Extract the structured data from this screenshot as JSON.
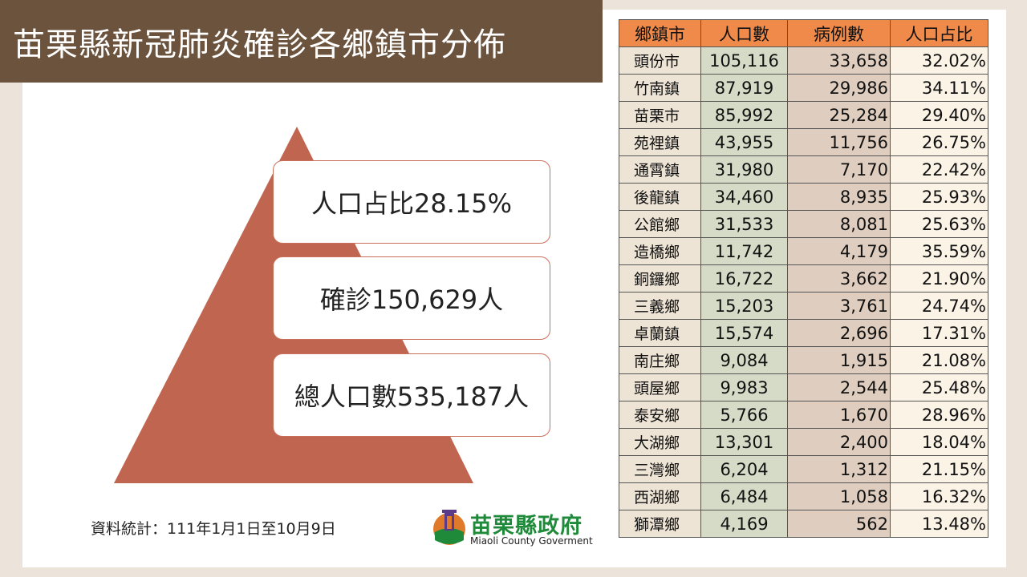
{
  "title": "苗栗縣新冠肺炎確診各鄉鎮市分佈",
  "stats": {
    "ratio": "人口占比28.15%",
    "cases": "確診150,629人",
    "population": "總人口數535,187人"
  },
  "source_note": "資料統計：111年1月1日至10月9日",
  "logo": {
    "name_cn": "苗栗縣政府",
    "name_en": "Miaoli County Goverment"
  },
  "table": {
    "headers": [
      "鄉鎮市",
      "人口數",
      "病例數",
      "人口占比"
    ],
    "rows": [
      {
        "town": "頭份市",
        "population": "105,116",
        "cases": "33,658",
        "ratio": "32.02%"
      },
      {
        "town": "竹南鎮",
        "population": "87,919",
        "cases": "29,986",
        "ratio": "34.11%"
      },
      {
        "town": "苗栗市",
        "population": "85,992",
        "cases": "25,284",
        "ratio": "29.40%"
      },
      {
        "town": "苑裡鎮",
        "population": "43,955",
        "cases": "11,756",
        "ratio": "26.75%"
      },
      {
        "town": "通霄鎮",
        "population": "31,980",
        "cases": "7,170",
        "ratio": "22.42%"
      },
      {
        "town": "後龍鎮",
        "population": "34,460",
        "cases": "8,935",
        "ratio": "25.93%"
      },
      {
        "town": "公館鄉",
        "population": "31,533",
        "cases": "8,081",
        "ratio": "25.63%"
      },
      {
        "town": "造橋鄉",
        "population": "11,742",
        "cases": "4,179",
        "ratio": "35.59%"
      },
      {
        "town": "銅鑼鄉",
        "population": "16,722",
        "cases": "3,662",
        "ratio": "21.90%"
      },
      {
        "town": "三義鄉",
        "population": "15,203",
        "cases": "3,761",
        "ratio": "24.74%"
      },
      {
        "town": "卓蘭鎮",
        "population": "15,574",
        "cases": "2,696",
        "ratio": "17.31%"
      },
      {
        "town": "南庄鄉",
        "population": "9,084",
        "cases": "1,915",
        "ratio": "21.08%"
      },
      {
        "town": "頭屋鄉",
        "population": "9,983",
        "cases": "2,544",
        "ratio": "25.48%"
      },
      {
        "town": "泰安鄉",
        "population": "5,766",
        "cases": "1,670",
        "ratio": "28.96%"
      },
      {
        "town": "大湖鄉",
        "population": "13,301",
        "cases": "2,400",
        "ratio": "18.04%"
      },
      {
        "town": "三灣鄉",
        "population": "6,204",
        "cases": "1,312",
        "ratio": "21.15%"
      },
      {
        "town": "西湖鄉",
        "population": "6,484",
        "cases": "1,058",
        "ratio": "16.32%"
      },
      {
        "town": "獅潭鄉",
        "population": "4,169",
        "cases": "562",
        "ratio": "13.48%"
      }
    ]
  },
  "colors": {
    "title_bar": "#6b533d",
    "pyramid": "#c0654f",
    "header": "#ef8a4a",
    "logo_green": "#1f8a3a"
  }
}
